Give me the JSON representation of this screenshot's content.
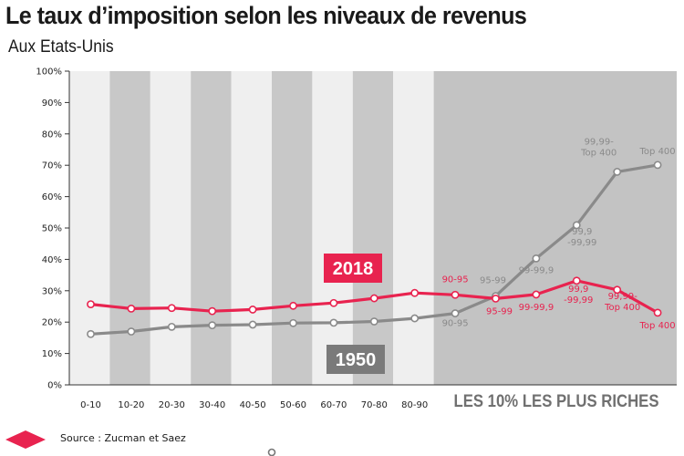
{
  "header": {
    "title": "Le taux d’imposition selon les niveaux de revenus",
    "subtitle": "Aux Etats-Unis"
  },
  "footer": {
    "source": "Source : Zucman et Saez"
  },
  "colors": {
    "series_2018": "#e8234f",
    "series_1950": "#8a8a8a",
    "band_dark": "#c8c8c8",
    "band_light": "#efefef",
    "rich_zone": "#c3c3c3",
    "rich_label": "#707070"
  },
  "chart_data": {
    "type": "line",
    "categories": [
      "0-10",
      "10-20",
      "20-30",
      "30-40",
      "40-50",
      "50-60",
      "60-70",
      "70-80",
      "80-90",
      "90-95",
      "95-99",
      "99-99,9",
      "99,9-99,99",
      "99,99-Top 400",
      "Top 400"
    ],
    "x_tick_labels": [
      "0-10",
      "10-20",
      "20-30",
      "30-40",
      "40-50",
      "50-60",
      "60-70",
      "70-80",
      "80-90"
    ],
    "ylim": [
      0,
      100
    ],
    "y_ticks": [
      "0%",
      "10%",
      "20%",
      "30%",
      "40%",
      "50%",
      "60%",
      "70%",
      "80%",
      "90%",
      "100%"
    ],
    "rich_zone_label": "LES 10% LES PLUS RICHES",
    "grid": false,
    "series": [
      {
        "name": "2018",
        "values": [
          25.7,
          24.3,
          24.5,
          23.5,
          24.0,
          25.2,
          26.1,
          27.6,
          29.3,
          28.7,
          27.5,
          28.8,
          33.2,
          30.3,
          23.0
        ],
        "point_labels": [
          "",
          "",
          "",
          "",
          "",
          "",
          "",
          "",
          "",
          "90-95",
          "95-99",
          "99-99,9",
          "99,9\n-99,99",
          "99,99-\nTop 400",
          "Top 400"
        ]
      },
      {
        "name": "1950",
        "values": [
          16.2,
          17.0,
          18.5,
          19.0,
          19.2,
          19.7,
          19.8,
          20.2,
          21.2,
          22.8,
          28.3,
          40.3,
          50.9,
          67.9,
          70.1
        ],
        "point_labels": [
          "",
          "",
          "",
          "",
          "",
          "",
          "",
          "",
          "",
          "90-95",
          "95-99",
          "99-99,9",
          "99,9\n-99,99",
          "99,99-\nTop 400",
          "Top 400"
        ]
      }
    ]
  }
}
